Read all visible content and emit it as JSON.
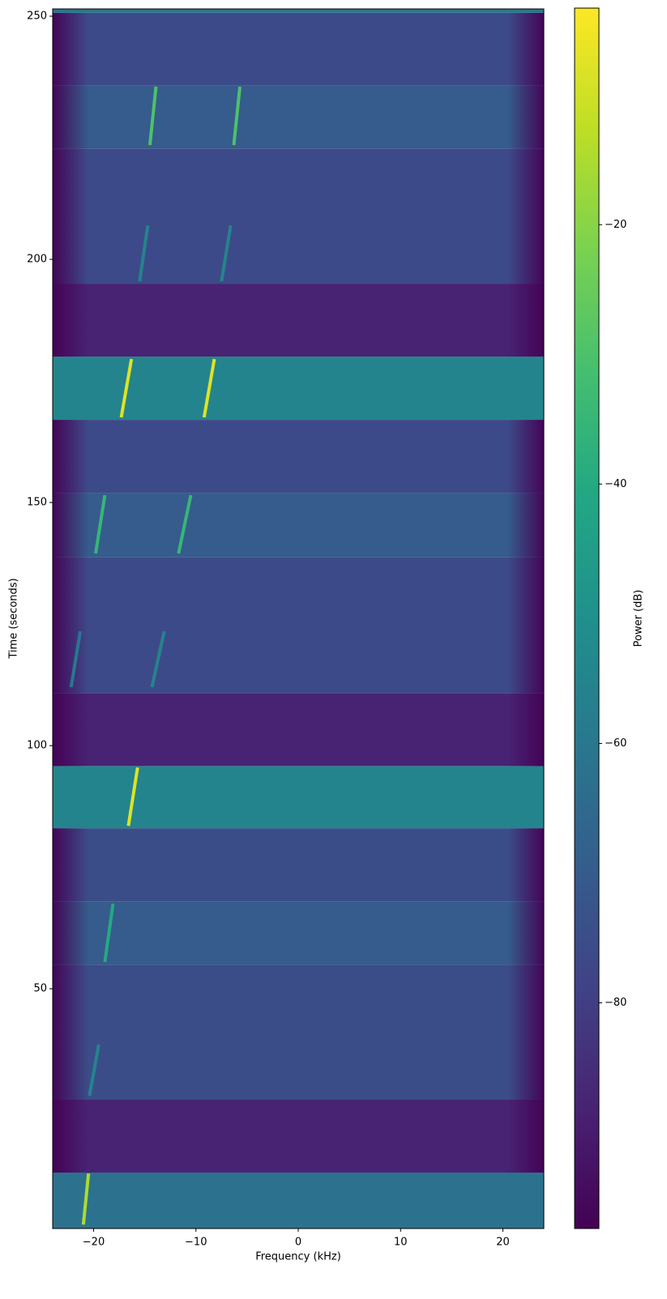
{
  "chart_data": {
    "type": "spectrogram",
    "x_label": "Frequency (kHz)",
    "y_label": "Time (seconds)",
    "colorbar_label": "Power (dB)",
    "colormap": "viridis",
    "xlim": [
      -24,
      24
    ],
    "xticks": [
      {
        "value": -20,
        "label": "−20"
      },
      {
        "value": -10,
        "label": "−10"
      },
      0,
      10,
      20
    ],
    "ylim": [
      0.7,
      251.5
    ],
    "yticks": [
      50,
      100,
      150,
      200,
      250
    ],
    "clim": [
      -97.4,
      -3.3
    ],
    "cticks": [
      {
        "value": -80,
        "label": "−80"
      },
      {
        "value": -60,
        "label": "−60"
      },
      {
        "value": -40,
        "label": "−40"
      },
      {
        "value": -20,
        "label": "−20"
      }
    ],
    "bands": [
      {
        "time": [
          0.7,
          12.2
        ],
        "power": -62
      },
      {
        "time": [
          12.2,
          27.2
        ],
        "power": -88
      },
      {
        "time": [
          27.2,
          55
        ],
        "power": -75
      },
      {
        "time": [
          55,
          68
        ],
        "power": -70
      },
      {
        "time": [
          68,
          83
        ],
        "power": -75
      },
      {
        "time": [
          83,
          95.8
        ],
        "power": -55
      },
      {
        "time": [
          95.8,
          110.8
        ],
        "power": -88
      },
      {
        "time": [
          110.8,
          138.7
        ],
        "power": -76
      },
      {
        "time": [
          138.7,
          152
        ],
        "power": -70
      },
      {
        "time": [
          152,
          167
        ],
        "power": -76
      },
      {
        "time": [
          167,
          180
        ],
        "power": -55
      },
      {
        "time": [
          180,
          195
        ],
        "power": -88
      },
      {
        "time": [
          195,
          222.8
        ],
        "power": -76
      },
      {
        "time": [
          222.8,
          235.7
        ],
        "power": -70
      },
      {
        "time": [
          235.7,
          250.7
        ],
        "power": -76
      },
      {
        "time": [
          250.7,
          251.5
        ],
        "power": -60
      }
    ],
    "tracks": [
      {
        "freq": [
          -21,
          -20.5
        ],
        "time": [
          1.5,
          12
        ],
        "power": -15
      },
      {
        "freq": [
          -20.4,
          -19.5
        ],
        "time": [
          28,
          38.5
        ],
        "power": -55
      },
      {
        "freq": [
          -18.9,
          -18.1
        ],
        "time": [
          55.5,
          67.5
        ],
        "power": -40
      },
      {
        "freq": [
          -16.6,
          -15.7
        ],
        "time": [
          83.5,
          95.5
        ],
        "power": -8
      },
      {
        "freq": [
          -22.2,
          -21.3
        ],
        "time": [
          112,
          123.5
        ],
        "power": -60
      },
      {
        "freq": [
          -14.3,
          -13.1
        ],
        "time": [
          112,
          123.5
        ],
        "power": -55
      },
      {
        "freq": [
          -19.8,
          -18.9
        ],
        "time": [
          139.5,
          151.5
        ],
        "power": -35
      },
      {
        "freq": [
          -11.7,
          -10.5
        ],
        "time": [
          139.5,
          151.5
        ],
        "power": -35
      },
      {
        "freq": [
          -17.3,
          -16.3
        ],
        "time": [
          167.5,
          179.5
        ],
        "power": -8
      },
      {
        "freq": [
          -9.2,
          -8.2
        ],
        "time": [
          167.5,
          179.5
        ],
        "power": -8
      },
      {
        "freq": [
          -15.5,
          -14.7
        ],
        "time": [
          195.5,
          207
        ],
        "power": -55
      },
      {
        "freq": [
          -7.5,
          -6.6
        ],
        "time": [
          195.5,
          207
        ],
        "power": -55
      },
      {
        "freq": [
          -14.5,
          -13.9
        ],
        "time": [
          223.5,
          235.5
        ],
        "power": -30
      },
      {
        "freq": [
          -6.3,
          -5.7
        ],
        "time": [
          223.5,
          235.5
        ],
        "power": -30
      }
    ]
  }
}
